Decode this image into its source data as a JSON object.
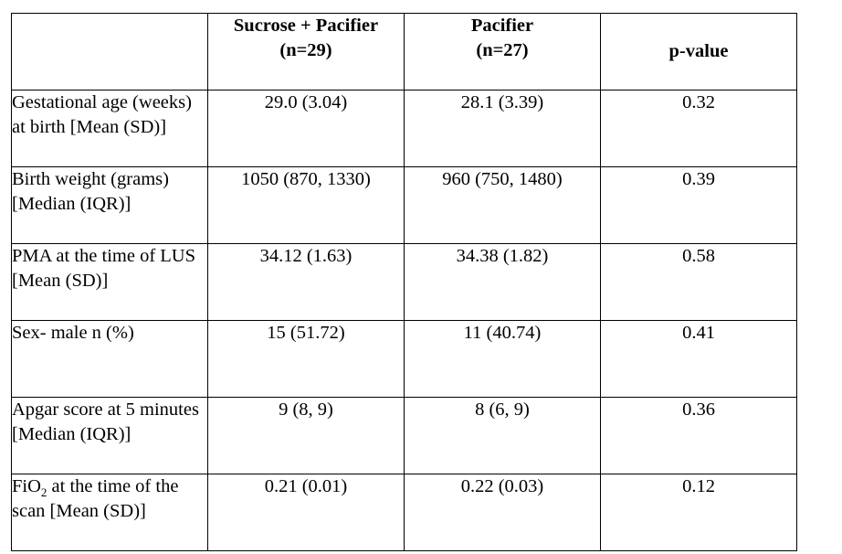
{
  "table": {
    "headers": [
      {
        "lines": []
      },
      {
        "lines": [
          "Sucrose + Pacifier",
          "(n=29)"
        ]
      },
      {
        "lines": [
          "Pacifier",
          "(n=27)"
        ]
      },
      {
        "lines": [
          "p-value"
        ]
      }
    ],
    "rows": [
      {
        "label": "Gestational age (weeks) at birth [Mean (SD)]",
        "sucrose_pacifier": "29.0 (3.04)",
        "pacifier": "28.1 (3.39)",
        "p_value": "0.32"
      },
      {
        "label": "Birth weight (grams) [Median (IQR)]",
        "sucrose_pacifier": "1050 (870, 1330)",
        "pacifier": "960 (750, 1480)",
        "p_value": "0.39"
      },
      {
        "label": "PMA at the time of LUS [Mean (SD)]",
        "sucrose_pacifier": "34.12 (1.63)",
        "pacifier": "34.38 (1.82)",
        "p_value": "0.58"
      },
      {
        "label": "Sex- male n (%)",
        "sucrose_pacifier": "15 (51.72)",
        "pacifier": "11 (40.74)",
        "p_value": "0.41"
      },
      {
        "label": "Apgar score at 5 minutes [Median (IQR)]",
        "sucrose_pacifier": "9 (8, 9)",
        "pacifier": "8 (6, 9)",
        "p_value": "0.36"
      },
      {
        "label_prefix": "FiO",
        "label_subscript": "2",
        "label_suffix": " at the time of the scan [Mean (SD)]",
        "sucrose_pacifier": "0.21 (0.01)",
        "pacifier": "0.22 (0.03)",
        "p_value": "0.12"
      }
    ]
  }
}
